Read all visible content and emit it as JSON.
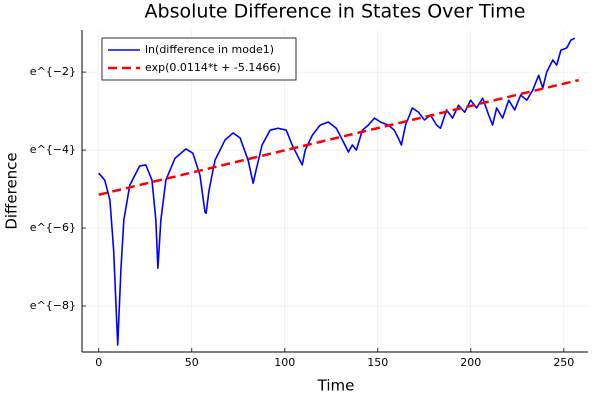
{
  "chart_data": {
    "type": "line",
    "title": "Absolute Difference in States Over Time",
    "x_label": "Time",
    "y_label": "Difference",
    "xlim": [
      -9,
      263
    ],
    "ylim": [
      -9.18,
      -0.92
    ],
    "xticks": [
      0,
      50,
      100,
      150,
      200,
      250
    ],
    "yticks": [
      {
        "value": -8,
        "label": "e^{−8}"
      },
      {
        "value": -6,
        "label": "e^{−6}"
      },
      {
        "value": -4,
        "label": "e^{−4}"
      },
      {
        "value": -2,
        "label": "e^{−2}"
      }
    ],
    "grid": true,
    "legend": "top left",
    "series": [
      {
        "name": "ln(difference in mode1)",
        "color": "#0000ff",
        "style": "solid",
        "x": [
          0,
          3.2,
          6,
          8,
          10.2,
          11.9,
          13.5,
          16.7,
          22,
          25.3,
          28.6,
          30.7,
          31.8,
          33.4,
          36.1,
          41,
          46.9,
          50.6,
          54.4,
          57.1,
          57.7,
          59.3,
          62.5,
          67.9,
          72.2,
          76,
          80.3,
          83,
          84.6,
          87.8,
          92.1,
          96.4,
          100.8,
          104,
          107.2,
          109.4,
          111,
          114.8,
          119,
          123.4,
          127.7,
          131.5,
          134.2,
          136.3,
          138.5,
          141.7,
          144.9,
          148.2,
          151.4,
          155.7,
          158.9,
          161,
          162.7,
          164.9,
          168.6,
          171.9,
          175.1,
          178.3,
          181.6,
          183.7,
          187,
          190.2,
          193.4,
          196.7,
          199.9,
          203.1,
          206.4,
          209.6,
          211.7,
          213.9,
          217.1,
          220.4,
          223.6,
          226.8,
          230.1,
          233.3,
          236.5,
          238.7,
          240.8,
          244.1,
          246.2,
          248.4,
          251.6,
          253.8,
          255.9
        ],
        "values": [
          -4.59,
          -4.77,
          -5.28,
          -6.56,
          -9.0,
          -7.08,
          -5.79,
          -4.9,
          -4.41,
          -4.38,
          -4.77,
          -5.79,
          -7.03,
          -5.79,
          -4.77,
          -4.21,
          -3.97,
          -4.08,
          -4.64,
          -5.59,
          -5.62,
          -5.03,
          -4.26,
          -3.74,
          -3.56,
          -3.69,
          -4.26,
          -4.85,
          -4.51,
          -3.87,
          -3.49,
          -3.44,
          -3.49,
          -3.87,
          -4.18,
          -4.38,
          -4.0,
          -3.62,
          -3.36,
          -3.28,
          -3.44,
          -3.79,
          -4.05,
          -3.87,
          -4.0,
          -3.49,
          -3.36,
          -3.18,
          -3.28,
          -3.36,
          -3.49,
          -3.69,
          -3.87,
          -3.36,
          -2.92,
          -3.03,
          -3.23,
          -3.1,
          -3.36,
          -3.44,
          -2.97,
          -3.18,
          -2.85,
          -3.03,
          -2.72,
          -2.92,
          -2.67,
          -3.1,
          -3.36,
          -2.92,
          -3.18,
          -2.72,
          -2.97,
          -2.59,
          -2.72,
          -2.46,
          -2.08,
          -2.41,
          -2.0,
          -1.69,
          -1.82,
          -1.44,
          -1.38,
          -1.18,
          -1.13
        ]
      },
      {
        "name": "exp(0.0114*t + -5.1466)",
        "color": "#ff0000",
        "style": "dashed",
        "x": [
          0,
          258
        ],
        "values": [
          -5.1466,
          -2.2054
        ]
      }
    ]
  }
}
